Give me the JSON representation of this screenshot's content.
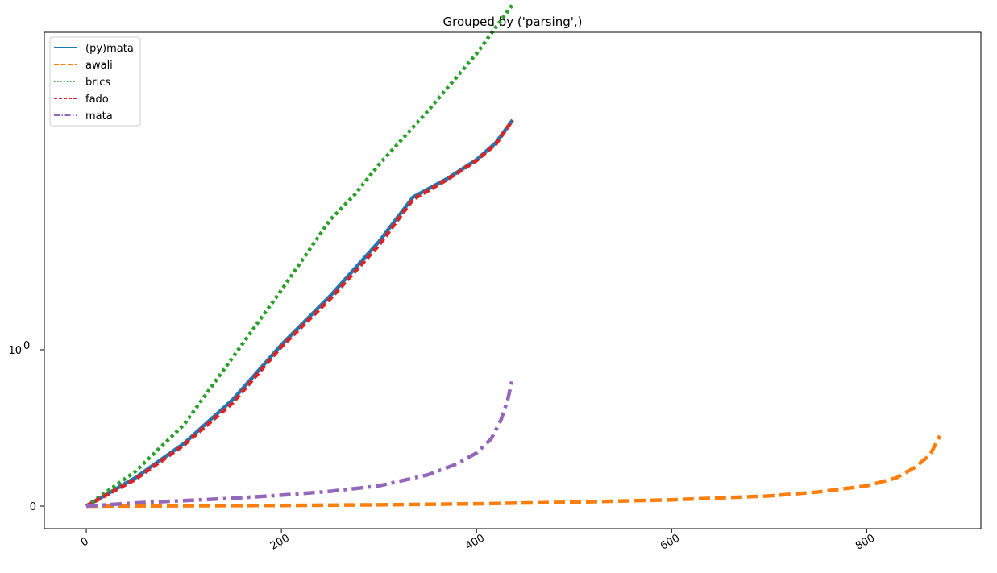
{
  "chart_data": {
    "type": "line",
    "title": "Grouped by ('parsing',)",
    "xlabel": "",
    "ylabel": "",
    "x_ticks": [
      "0",
      "200",
      "400",
      "600",
      "800"
    ],
    "y_ticks": [
      {
        "base": "0",
        "exp": ""
      },
      {
        "base": "10",
        "exp": "0"
      }
    ],
    "y_scale": "symlog",
    "xlim": [
      -43,
      917
    ],
    "grid": false,
    "legend_position": "top-left",
    "series": [
      {
        "name": "(py)mata",
        "color": "#1f77b4",
        "dash": "solid",
        "x": [
          0,
          50,
          100,
          150,
          200,
          250,
          300,
          335,
          370,
          400,
          420,
          437
        ],
        "y": [
          0,
          0.18,
          0.4,
          0.68,
          1.05,
          1.7,
          2.9,
          4.5,
          5.4,
          6.5,
          7.7,
          9.6
        ]
      },
      {
        "name": "awali",
        "color": "#ff7f0e",
        "dash": "dashed",
        "x": [
          0,
          100,
          200,
          300,
          400,
          500,
          600,
          700,
          750,
          800,
          830,
          850,
          865,
          875
        ],
        "y": [
          0,
          0.002,
          0.004,
          0.008,
          0.015,
          0.025,
          0.04,
          0.065,
          0.09,
          0.13,
          0.18,
          0.25,
          0.33,
          0.45
        ]
      },
      {
        "name": "brics",
        "color": "#2ca02c",
        "dash": "dotted",
        "x": [
          0,
          50,
          100,
          150,
          200,
          250,
          275,
          300,
          350,
          400,
          437
        ],
        "y": [
          0,
          0.22,
          0.52,
          0.95,
          1.8,
          3.6,
          4.6,
          6.2,
          10.5,
          18.5,
          30
        ]
      },
      {
        "name": "fado",
        "color": "#d62728",
        "dash": "dashdot-dense",
        "x": [
          0,
          50,
          100,
          150,
          200,
          250,
          300,
          335,
          370,
          400,
          420,
          437
        ],
        "y": [
          0,
          0.17,
          0.39,
          0.66,
          1.03,
          1.65,
          2.8,
          4.4,
          5.35,
          6.45,
          7.6,
          9.6
        ]
      },
      {
        "name": "mata",
        "color": "#9467bd",
        "dash": "dashdot",
        "x": [
          0,
          50,
          100,
          150,
          200,
          250,
          300,
          350,
          380,
          400,
          415,
          425,
          432,
          437
        ],
        "y": [
          0,
          0.02,
          0.035,
          0.05,
          0.07,
          0.095,
          0.13,
          0.2,
          0.27,
          0.34,
          0.43,
          0.55,
          0.68,
          0.82
        ]
      }
    ]
  }
}
